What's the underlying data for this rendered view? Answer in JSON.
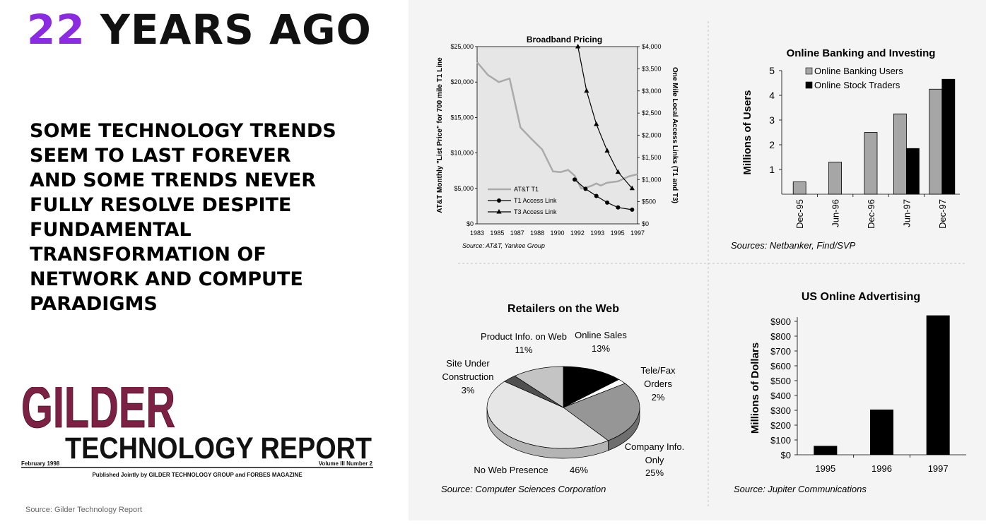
{
  "slide": {
    "heading_number": "22",
    "heading_rest": "YEARS AGO",
    "body": "Some technology trends seem to last forever and some trends never fully resolve despite fundamental transformation of network and compute paradigms",
    "source": "Source: Gilder Technology Report"
  },
  "masthead": {
    "gilder": "GILDER",
    "title": "TECHNOLOGY REPORT",
    "date": "February 1998",
    "volume": "Volume III Number 2",
    "published": "Published Jointly by GILDER TECHNOLOGY GROUP and FORBES MAGAZINE",
    "gilder_color": "#7d2144"
  },
  "colors": {
    "accent": "#8a2be2",
    "panel_bg": "#f4f4f4"
  },
  "chart_data": [
    {
      "id": "broadband",
      "type": "line",
      "title": "Broadband Pricing",
      "ylabel": "AT&T Monthly \"List Price\" for 700 mile T1 Line",
      "ylabel_right": "One Mile Local Access Links (T1 and T3)",
      "ylim": [
        0,
        25000
      ],
      "ylim_right": [
        0,
        4000
      ],
      "yticks": [
        "$0",
        "$5,000",
        "$10,000",
        "$15,000",
        "$20,000",
        "$25,000"
      ],
      "yticks_right": [
        "$0",
        "$500",
        "$1,000",
        "$1,500",
        "$2,000",
        "$2,500",
        "$3,000",
        "$3,500",
        "$4,000"
      ],
      "xlim": [
        1983,
        1997.8
      ],
      "xticks": [
        "1983",
        "1985",
        "1987",
        "1988",
        "1990",
        "1992",
        "1993",
        "1995",
        "1997"
      ],
      "source": "Source: AT&T, Yankee Group",
      "series": [
        {
          "name": "AT&T T1",
          "axis": "left",
          "color": "#aaaaaa",
          "marker": "none",
          "x": [
            1983,
            1984,
            1985,
            1986,
            1987,
            1988,
            1989,
            1990,
            1990.7,
            1991.4,
            1992,
            1992.6,
            1993,
            1993.6,
            1994,
            1994.4,
            1995,
            1996,
            1997,
            1997.8
          ],
          "y": [
            22800,
            21000,
            20000,
            20500,
            13600,
            12000,
            10500,
            7400,
            7300,
            7600,
            6800,
            5000,
            5100,
            5400,
            5700,
            5400,
            5800,
            6000,
            6700,
            7000
          ]
        },
        {
          "name": "T1 Access Link",
          "axis": "right",
          "color": "#000000",
          "marker": "circle",
          "x": [
            1992,
            1993,
            1994,
            1995,
            1996,
            1997.3
          ],
          "y": [
            1000,
            790,
            630,
            480,
            370,
            320
          ]
        },
        {
          "name": "T3 Access Link",
          "axis": "right",
          "color": "#000000",
          "marker": "triangle",
          "x": [
            1992.3,
            1993.1,
            1994,
            1995,
            1996,
            1997.3
          ],
          "y": [
            4000,
            3000,
            2250,
            1650,
            1170,
            800
          ]
        }
      ]
    },
    {
      "id": "banking",
      "type": "bar",
      "title": "Online Banking and Investing",
      "ylabel": "Millions of Users",
      "ylim": [
        0,
        5
      ],
      "yticks": [
        "1",
        "2",
        "3",
        "4",
        "5"
      ],
      "categories": [
        "Dec-95",
        "Jun-96",
        "Dec-96",
        "Jun-97",
        "Dec-97"
      ],
      "source": "Sources: Netbanker, Find/SVP",
      "series": [
        {
          "name": "Online Banking Users",
          "color": "#a6a6a6",
          "values": [
            0.5,
            1.3,
            2.5,
            3.25,
            4.25
          ]
        },
        {
          "name": "Online Stock Traders",
          "color": "#000000",
          "values": [
            null,
            null,
            null,
            1.85,
            4.65
          ]
        }
      ]
    },
    {
      "id": "retailers",
      "type": "pie",
      "title": "Retailers on the Web",
      "source": "Source: Computer Sciences Corporation",
      "slices": [
        {
          "label": "Online Sales",
          "value": "13%",
          "pct": 13,
          "color": "#000000",
          "side_color": "#000000"
        },
        {
          "label": "Tele/Fax Orders",
          "value": "2%",
          "pct": 2,
          "color": "#ffffff",
          "side_color": "#d0d0d0"
        },
        {
          "label": "Company Info. Only",
          "value": "25%",
          "pct": 25,
          "color": "#969696",
          "side_color": "#6e6e6e"
        },
        {
          "label": "No Web Presence",
          "value": "46%",
          "pct": 46,
          "color": "#e6e6e6",
          "side_color": "#b4b4b4"
        },
        {
          "label": "Site Under Construction",
          "value": "3%",
          "pct": 3,
          "color": "#505050",
          "side_color": "#3a3a3a"
        },
        {
          "label": "Product Info. on Web",
          "value": "11%",
          "pct": 11,
          "color": "#c4c4c4",
          "side_color": "#9c9c9c"
        }
      ]
    },
    {
      "id": "advertising",
      "type": "bar",
      "title": "US Online Advertising",
      "ylabel": "Millions of Dollars",
      "ylim": [
        0,
        900
      ],
      "yticks": [
        "$0",
        "$100",
        "$200",
        "$300",
        "$400",
        "$500",
        "$600",
        "$700",
        "$800",
        "$900"
      ],
      "categories": [
        "1995",
        "1996",
        "1997"
      ],
      "source": "Source: Jupiter Communications",
      "series": [
        {
          "color": "#000000",
          "values": [
            60,
            305,
            940
          ]
        }
      ]
    }
  ]
}
